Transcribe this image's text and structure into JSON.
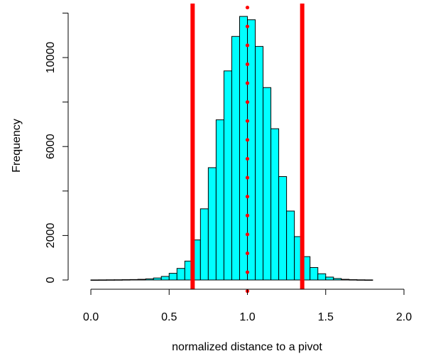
{
  "chart_data": {
    "type": "bar",
    "subtype": "histogram",
    "title": "",
    "xlabel": "normalized distance to a pivot",
    "ylabel": "Frequency",
    "xlim": [
      0,
      2
    ],
    "ylim": [
      0,
      12000
    ],
    "xticks": [
      "0.0",
      "0.5",
      "1.0",
      "1.5",
      "2.0"
    ],
    "yticks": [
      "0",
      "2000",
      "6000",
      "10000"
    ],
    "bin_width": 0.05,
    "bins": [
      {
        "x0": 0.0,
        "x1": 0.05,
        "count": 3
      },
      {
        "x0": 0.05,
        "x1": 0.1,
        "count": 5
      },
      {
        "x0": 0.1,
        "x1": 0.15,
        "count": 8
      },
      {
        "x0": 0.15,
        "x1": 0.2,
        "count": 10
      },
      {
        "x0": 0.2,
        "x1": 0.25,
        "count": 15
      },
      {
        "x0": 0.25,
        "x1": 0.3,
        "count": 20
      },
      {
        "x0": 0.3,
        "x1": 0.35,
        "count": 30
      },
      {
        "x0": 0.35,
        "x1": 0.4,
        "count": 50
      },
      {
        "x0": 0.4,
        "x1": 0.45,
        "count": 90
      },
      {
        "x0": 0.45,
        "x1": 0.5,
        "count": 160
      },
      {
        "x0": 0.5,
        "x1": 0.55,
        "count": 300
      },
      {
        "x0": 0.55,
        "x1": 0.6,
        "count": 520
      },
      {
        "x0": 0.6,
        "x1": 0.65,
        "count": 850
      },
      {
        "x0": 0.65,
        "x1": 0.7,
        "count": 1800
      },
      {
        "x0": 0.7,
        "x1": 0.75,
        "count": 3200
      },
      {
        "x0": 0.75,
        "x1": 0.8,
        "count": 5050
      },
      {
        "x0": 0.8,
        "x1": 0.85,
        "count": 7200
      },
      {
        "x0": 0.85,
        "x1": 0.9,
        "count": 9400
      },
      {
        "x0": 0.9,
        "x1": 0.95,
        "count": 10950
      },
      {
        "x0": 0.95,
        "x1": 1.0,
        "count": 11850
      },
      {
        "x0": 1.0,
        "x1": 1.05,
        "count": 11700
      },
      {
        "x0": 1.05,
        "x1": 1.1,
        "count": 10500
      },
      {
        "x0": 1.1,
        "x1": 1.15,
        "count": 8650
      },
      {
        "x0": 1.15,
        "x1": 1.2,
        "count": 6800
      },
      {
        "x0": 1.2,
        "x1": 1.25,
        "count": 4650
      },
      {
        "x0": 1.25,
        "x1": 1.3,
        "count": 3100
      },
      {
        "x0": 1.3,
        "x1": 1.35,
        "count": 1950
      },
      {
        "x0": 1.35,
        "x1": 1.4,
        "count": 1050
      },
      {
        "x0": 1.4,
        "x1": 1.45,
        "count": 560
      },
      {
        "x0": 1.45,
        "x1": 1.5,
        "count": 280
      },
      {
        "x0": 1.5,
        "x1": 1.55,
        "count": 130
      },
      {
        "x0": 1.55,
        "x1": 1.6,
        "count": 65
      },
      {
        "x0": 1.6,
        "x1": 1.65,
        "count": 30
      },
      {
        "x0": 1.65,
        "x1": 1.7,
        "count": 15
      },
      {
        "x0": 1.7,
        "x1": 1.75,
        "count": 8
      },
      {
        "x0": 1.75,
        "x1": 1.8,
        "count": 4
      }
    ],
    "bar_color": "#00FFFF",
    "bar_edge_color": "#000000",
    "vertical_lines": [
      {
        "x": 0.65,
        "color": "#FF0000"
      },
      {
        "x": 1.35,
        "color": "#FF0000"
      }
    ],
    "dotted_line": {
      "x": 1.0,
      "y_from": -500,
      "y_to": 12300,
      "color": "#FF0000"
    },
    "grid": false,
    "legend": "none"
  }
}
